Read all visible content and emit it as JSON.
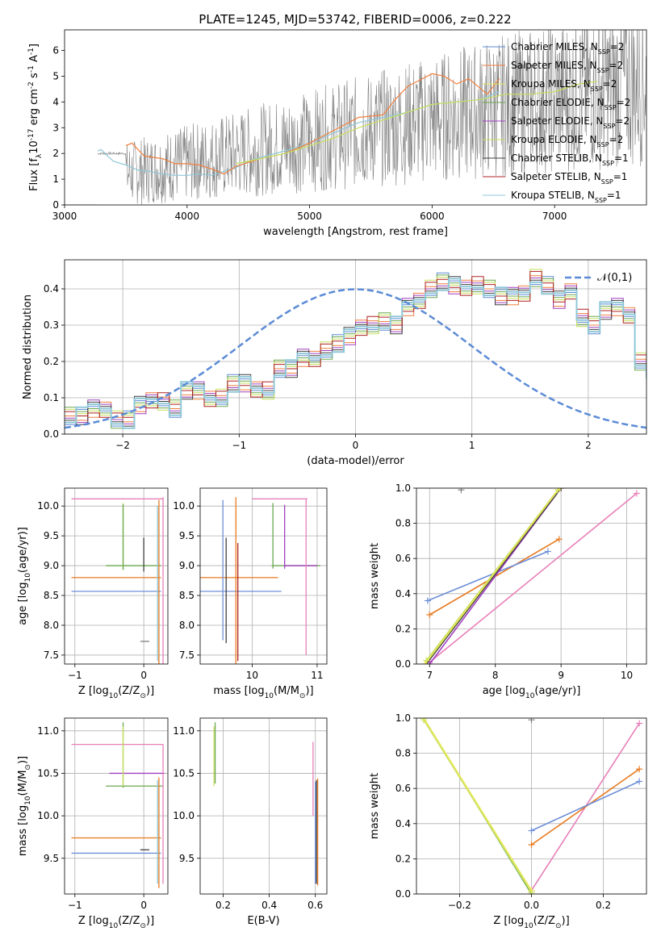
{
  "figure_title": "PLATE=1245, MJD=53742, FIBERID=0006, z=0.222",
  "colors": {
    "chabrier_miles": "#5b8bd6",
    "salpeter_miles": "#f08040",
    "kroupa_miles": "#e8e85a",
    "chabrier_elodie": "#6aa84f",
    "salpeter_elodie": "#a040c0",
    "kroupa_elodie": "#c8e060",
    "chabrier_stelib": "#404040",
    "salpeter_stelib": "#b02020",
    "kroupa_stelib": "#90c8d8",
    "data": "#808080",
    "pink": "#e87fb8",
    "orange": "#e87a20",
    "blue": "#6d8fd8",
    "gold": "#d8d040"
  },
  "chart_data": [
    {
      "id": "spectrum",
      "type": "line",
      "xlabel": "wavelength [Angstrom, rest frame]",
      "ylabel": "Flux [f$_\\lambda$10$^{-17}$ erg cm$^{-2}$ s$^{-1}$ A$^{-1}$]",
      "xlim": [
        3000,
        7750
      ],
      "ylim": [
        0,
        6.8
      ],
      "x_ticks": [
        3000,
        4000,
        5000,
        6000,
        7000
      ],
      "y_ticks": [
        0,
        1,
        2,
        3,
        4,
        5,
        6
      ],
      "grid": false,
      "legend": "top-right",
      "legend_entries": [
        "Chabrier MILES, N$_{SSP}$=2",
        "Salpeter MILES, N$_{SSP}$=2",
        "Kroupa MILES, N$_{SSP}$=2",
        "Chabrier ELODIE, N$_{SSP}$=2",
        "Salpeter ELODIE, N$_{SSP}$=2",
        "Kroupa ELODIE, N$_{SSP}$=2",
        "Chabrier STELIB, N$_{SSP}$=1",
        "Salpeter STELIB, N$_{SSP}$=1",
        "Kroupa STELIB, N$_{SSP}$=1"
      ],
      "series": [
        {
          "x": [
            3270,
            3300,
            3350,
            3400,
            3500,
            3600,
            3700,
            3800,
            3900,
            4000,
            4100,
            4200,
            4300,
            4400,
            4500,
            4600,
            4800,
            5000,
            5200,
            5400,
            5600,
            5800,
            6000,
            6200,
            6400,
            6550
          ],
          "values": [
            2.1,
            2.15,
            1.9,
            1.7,
            1.55,
            1.35,
            1.3,
            1.2,
            1.15,
            1.15,
            1.2,
            1.15,
            1.3,
            1.45,
            1.7,
            1.85,
            2.1,
            2.4,
            2.8,
            3.2,
            3.4,
            3.6,
            3.9,
            4.0,
            4.1,
            4.4
          ]
        },
        {
          "x": [
            3500,
            3550,
            3650,
            3800,
            3900,
            4000,
            4100,
            4200,
            4300,
            4400,
            4600,
            4800,
            5000,
            5200,
            5400,
            5600,
            5700,
            5800,
            6000,
            6100,
            6200,
            6300,
            6450,
            6550
          ],
          "values": [
            2.3,
            2.4,
            1.9,
            1.8,
            1.6,
            1.6,
            1.55,
            1.4,
            1.2,
            1.5,
            1.8,
            2.0,
            2.4,
            2.9,
            3.4,
            3.5,
            4.1,
            4.6,
            5.1,
            5.0,
            4.7,
            4.9,
            4.3,
            4.9
          ]
        },
        {
          "x": [
            4400,
            4600,
            4800,
            5000,
            5200,
            5400,
            5600,
            5800,
            6000,
            6200,
            6400,
            6600,
            6800,
            7000,
            7200,
            7350
          ],
          "values": [
            1.6,
            1.8,
            2.0,
            2.3,
            2.6,
            3.0,
            3.3,
            3.6,
            3.9,
            4.0,
            4.1,
            4.3,
            4.3,
            4.4,
            4.7,
            4.8
          ]
        }
      ]
    },
    {
      "id": "residuals",
      "type": "line",
      "xlabel": "(data-model)/error",
      "ylabel": "Normed distribution",
      "xlim": [
        -2.5,
        2.5
      ],
      "ylim": [
        0,
        0.48
      ],
      "x_ticks": [
        -2,
        -1,
        0,
        1,
        2
      ],
      "x_tick_labels": [
        "−2",
        "−1",
        "0",
        "1",
        "2"
      ],
      "y_ticks": [
        0.0,
        0.1,
        0.2,
        0.3,
        0.4
      ],
      "y_tick_labels": [
        "0.0",
        "0.1",
        "0.2",
        "0.3",
        "0.4"
      ],
      "grid": true,
      "legend": "top-right",
      "legend_entries": [
        "$\\mathcal{N}(0,1)$"
      ],
      "hist_bin_width": 0.1,
      "hist_start": -2.5,
      "hist_values": [
        0.05,
        0.05,
        0.07,
        0.07,
        0.04,
        0.04,
        0.08,
        0.09,
        0.09,
        0.07,
        0.12,
        0.12,
        0.1,
        0.1,
        0.14,
        0.14,
        0.12,
        0.12,
        0.18,
        0.18,
        0.21,
        0.21,
        0.23,
        0.25,
        0.27,
        0.29,
        0.3,
        0.31,
        0.3,
        0.35,
        0.37,
        0.4,
        0.42,
        0.41,
        0.4,
        0.41,
        0.4,
        0.38,
        0.38,
        0.39,
        0.43,
        0.41,
        0.37,
        0.39,
        0.32,
        0.3,
        0.34,
        0.35,
        0.33,
        0.2,
        0.18,
        0.14,
        0.15,
        0.14,
        0.1,
        0.09,
        0.08,
        0.07,
        0.06,
        0.05,
        0.05,
        0.04,
        0.04,
        0.03,
        0.05,
        0.03,
        0.02,
        0.02,
        0.03,
        0.03
      ],
      "gaussian": {
        "mu": 0,
        "sigma": 1
      }
    },
    {
      "id": "age_vs_Z",
      "type": "scatter",
      "xlabel": "Z [log$_{10}$(Z/Z$_\\odot$)]",
      "ylabel": "age  [log$_{10}$(age/yr)]",
      "xlim": [
        -1.15,
        0.35
      ],
      "ylim": [
        7.35,
        10.3
      ],
      "x_ticks": [
        -1,
        0
      ],
      "x_tick_labels": [
        "−1",
        "0"
      ],
      "y_ticks": [
        7.5,
        8.0,
        8.5,
        9.0,
        9.5,
        10.0
      ],
      "y_tick_labels": [
        "7.5",
        "8.0",
        "8.5",
        "9.0",
        "9.5",
        "10.0"
      ],
      "grid": true,
      "horizontal_segments": [
        {
          "color": "#e87fb8",
          "y": 10.12,
          "x0": -1.05,
          "x1": 0.28
        },
        {
          "color": "#e87a20",
          "y": 8.8,
          "x0": -1.05,
          "x1": 0.25
        },
        {
          "color": "#6d8fd8",
          "y": 8.57,
          "x0": -1.05,
          "x1": 0.25
        },
        {
          "color": "#6aa84f",
          "y": 9.0,
          "x0": -0.55,
          "x1": 0.25
        },
        {
          "color": "#808080",
          "y": 7.73,
          "x0": -0.05,
          "x1": 0.08
        }
      ],
      "vertical_segments": [
        {
          "color": "#e87fb8",
          "x": 0.28,
          "y0": 7.35,
          "y1": 10.15
        },
        {
          "color": "#e87a20",
          "x": 0.22,
          "y0": 7.35,
          "y1": 10.1
        },
        {
          "color": "#90c8d8",
          "x": 0.2,
          "y0": 7.4,
          "y1": 10.0
        },
        {
          "color": "#c8e060",
          "x": -0.3,
          "y0": 8.93,
          "y1": 10.05
        },
        {
          "color": "#6aa84f",
          "x": -0.3,
          "y0": 8.93,
          "y1": 10.03
        },
        {
          "color": "#404040",
          "x": 0.0,
          "y0": 8.9,
          "y1": 9.47
        }
      ]
    },
    {
      "id": "age_vs_mass",
      "type": "scatter",
      "xlabel": "mass [log$_{10}$(M/M$_\\odot$)]",
      "ylabel": "",
      "xlim": [
        9.2,
        11.15
      ],
      "ylim": [
        7.35,
        10.3
      ],
      "x_ticks": [
        10,
        11
      ],
      "x_tick_labels": [
        "10",
        "11"
      ],
      "y_ticks": [
        7.5,
        8.0,
        8.5,
        9.0,
        9.5,
        10.0
      ],
      "y_tick_labels": [
        "7.5",
        "8.0",
        "8.5",
        "9.0",
        "9.5",
        "10.0"
      ],
      "grid": true,
      "horizontal_segments": [
        {
          "color": "#e87fb8",
          "y": 10.12,
          "x0": 10.0,
          "x1": 10.85
        },
        {
          "color": "#e87a20",
          "y": 8.8,
          "x0": 9.2,
          "x1": 10.4
        },
        {
          "color": "#6d8fd8",
          "y": 8.57,
          "x0": 9.2,
          "x1": 10.45
        },
        {
          "color": "#6aa84f",
          "y": 9.0,
          "x0": 10.3,
          "x1": 11.05
        },
        {
          "color": "#a040c0",
          "y": 9.0,
          "x0": 10.5,
          "x1": 11.0
        }
      ],
      "vertical_segments": [
        {
          "color": "#6d8fd8",
          "x": 9.55,
          "y0": 7.75,
          "y1": 10.1
        },
        {
          "color": "#404040",
          "x": 9.6,
          "y0": 7.7,
          "y1": 9.47
        },
        {
          "color": "#e87a20",
          "x": 9.75,
          "y0": 7.35,
          "y1": 10.15
        },
        {
          "color": "#b02020",
          "x": 9.78,
          "y0": 7.4,
          "y1": 9.38
        },
        {
          "color": "#6aa84f",
          "x": 10.32,
          "y0": 8.95,
          "y1": 10.05
        },
        {
          "color": "#a040c0",
          "x": 10.5,
          "y0": 8.95,
          "y1": 10.02
        },
        {
          "color": "#e87fb8",
          "x": 10.83,
          "y0": 7.5,
          "y1": 10.12
        }
      ]
    },
    {
      "id": "weight_vs_age",
      "type": "line",
      "xlabel": "age  [log$_{10}$(age/yr)]",
      "ylabel": "mass weight",
      "xlim": [
        6.8,
        10.3
      ],
      "ylim": [
        0,
        1.0
      ],
      "x_ticks": [
        7,
        8,
        9,
        10
      ],
      "x_tick_labels": [
        "7",
        "8",
        "9",
        "10"
      ],
      "y_ticks": [
        0.0,
        0.2,
        0.4,
        0.6,
        0.8,
        1.0
      ],
      "y_tick_labels": [
        "0.0",
        "0.2",
        "0.4",
        "0.6",
        "0.8",
        "1.0"
      ],
      "grid": true,
      "series": [
        {
          "color": "#e87fb8",
          "x": [
            7.0,
            10.15
          ],
          "values": [
            0.01,
            0.97
          ]
        },
        {
          "color": "#e87a20",
          "x": [
            7.0,
            8.97
          ],
          "values": [
            0.28,
            0.71
          ]
        },
        {
          "color": "#6d8fd8",
          "x": [
            6.97,
            8.8
          ],
          "values": [
            0.36,
            0.64
          ]
        },
        {
          "color": "#a040c0",
          "x": [
            7.0,
            9.0
          ],
          "values": [
            0.0,
            1.0
          ]
        },
        {
          "color": "#404040",
          "x": [
            6.95,
            9.0
          ],
          "values": [
            0.0,
            1.0
          ]
        },
        {
          "color": "#c8e060",
          "x": [
            6.95,
            8.95
          ],
          "values": [
            0.02,
            0.99
          ]
        },
        {
          "color": "#e8e85a",
          "x": [
            6.93,
            8.98
          ],
          "values": [
            0.0,
            1.0
          ]
        }
      ],
      "extra_points": [
        {
          "x": 7.48,
          "y": 0.99,
          "color": "#808080"
        }
      ]
    },
    {
      "id": "mass_vs_Z",
      "type": "scatter",
      "xlabel": "Z [log$_{10}$(Z/Z$_\\odot$)]",
      "ylabel": "mass [log$_{10}$(M/M$_\\odot$)]",
      "xlim": [
        -1.15,
        0.35
      ],
      "ylim": [
        9.08,
        11.15
      ],
      "x_ticks": [
        -1,
        0
      ],
      "x_tick_labels": [
        "−1",
        "0"
      ],
      "y_ticks": [
        9.5,
        10.0,
        10.5,
        11.0
      ],
      "y_tick_labels": [
        "9.5",
        "10.0",
        "10.5",
        "11.0"
      ],
      "grid": true,
      "horizontal_segments": [
        {
          "color": "#e87fb8",
          "y": 10.84,
          "x0": -1.05,
          "x1": 0.28
        },
        {
          "color": "#a040c0",
          "y": 10.5,
          "x0": -0.5,
          "x1": 0.3
        },
        {
          "color": "#6aa84f",
          "y": 10.35,
          "x0": -0.55,
          "x1": 0.28
        },
        {
          "color": "#e87a20",
          "y": 9.74,
          "x0": -1.05,
          "x1": 0.25
        },
        {
          "color": "#6d8fd8",
          "y": 9.56,
          "x0": -1.05,
          "x1": 0.25
        },
        {
          "color": "#404040",
          "y": 9.6,
          "x0": -0.05,
          "x1": 0.08
        }
      ],
      "vertical_segments": [
        {
          "color": "#6aa84f",
          "x": -0.3,
          "y0": 10.33,
          "y1": 11.1
        },
        {
          "color": "#c8e060",
          "x": -0.3,
          "y0": 10.35,
          "y1": 11.05
        },
        {
          "color": "#e87a20",
          "x": 0.22,
          "y0": 9.15,
          "y1": 10.45
        },
        {
          "color": "#90c8d8",
          "x": 0.2,
          "y0": 9.2,
          "y1": 10.42
        },
        {
          "color": "#e87fb8",
          "x": 0.28,
          "y0": 9.2,
          "y1": 10.84
        }
      ]
    },
    {
      "id": "mass_vs_ebv",
      "type": "scatter",
      "xlabel": "E(B-V)",
      "ylabel": "",
      "xlim": [
        0.1,
        0.65
      ],
      "ylim": [
        9.08,
        11.15
      ],
      "x_ticks": [
        0.2,
        0.4,
        0.6
      ],
      "x_tick_labels": [
        "0.2",
        "0.4",
        "0.6"
      ],
      "y_ticks": [
        9.5,
        10.0,
        10.5,
        11.0
      ],
      "y_tick_labels": [
        "9.5",
        "10.0",
        "10.5",
        "11.0"
      ],
      "grid": true,
      "vertical_segments": [
        {
          "color": "#c8e060",
          "x": 0.16,
          "y0": 10.35,
          "y1": 11.05
        },
        {
          "color": "#6aa84f",
          "x": 0.165,
          "y0": 10.38,
          "y1": 11.1
        },
        {
          "color": "#e87fb8",
          "x": 0.59,
          "y0": 10.0,
          "y1": 10.87
        },
        {
          "color": "#e87a20",
          "x": 0.61,
          "y0": 9.18,
          "y1": 10.44
        },
        {
          "color": "#6d8fd8",
          "x": 0.6,
          "y0": 9.2,
          "y1": 10.4
        },
        {
          "color": "#404040",
          "x": 0.605,
          "y0": 9.2,
          "y1": 10.42
        }
      ]
    },
    {
      "id": "weight_vs_Z",
      "type": "line",
      "xlabel": "Z [log$_{10}$(Z/Z$_\\odot$)]",
      "ylabel": "mass weight",
      "xlim": [
        -0.32,
        0.32
      ],
      "ylim": [
        0,
        1.0
      ],
      "x_ticks": [
        -0.2,
        0.0,
        0.2
      ],
      "x_tick_labels": [
        "−0.2",
        "0.0",
        "0.2"
      ],
      "y_ticks": [
        0.0,
        0.2,
        0.4,
        0.6,
        0.8,
        1.0
      ],
      "y_tick_labels": [
        "0.0",
        "0.2",
        "0.4",
        "0.6",
        "0.8",
        "1.0"
      ],
      "grid": true,
      "series": [
        {
          "color": "#e87fb8",
          "x": [
            0.0,
            0.3
          ],
          "values": [
            0.02,
            0.97
          ]
        },
        {
          "color": "#e87a20",
          "x": [
            0.0,
            0.3
          ],
          "values": [
            0.28,
            0.71
          ]
        },
        {
          "color": "#6d8fd8",
          "x": [
            0.0,
            0.3
          ],
          "values": [
            0.36,
            0.64
          ]
        },
        {
          "color": "#6aa84f",
          "x": [
            -0.3,
            0.0
          ],
          "values": [
            1.0,
            0.0
          ]
        },
        {
          "color": "#c8e060",
          "x": [
            -0.3,
            0.0
          ],
          "values": [
            0.99,
            0.01
          ]
        },
        {
          "color": "#e8e85a",
          "x": [
            -0.3,
            0.0
          ],
          "values": [
            1.0,
            0.02
          ]
        }
      ],
      "extra_points": [
        {
          "x": 0.0,
          "y": 0.99,
          "color": "#808080"
        }
      ]
    }
  ]
}
